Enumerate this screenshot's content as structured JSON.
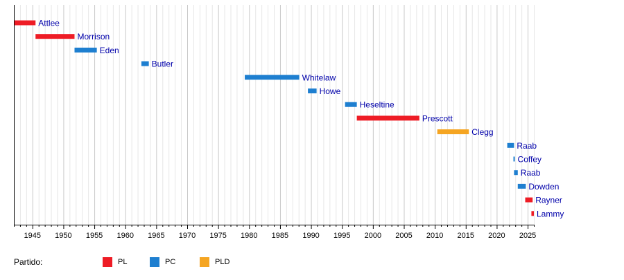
{
  "chart_data": {
    "type": "timeline",
    "x_range": [
      1942,
      2026
    ],
    "ticks": [
      1945,
      1950,
      1955,
      1960,
      1965,
      1970,
      1975,
      1980,
      1985,
      1990,
      1995,
      2000,
      2005,
      2010,
      2015,
      2020,
      2025
    ],
    "grid": true,
    "party_colors": {
      "PL": "#ee1c25",
      "PC": "#1e7fd0",
      "PLD": "#f5a522"
    },
    "bars": [
      {
        "name": "Attlee",
        "party": "PL",
        "start": 1942.1,
        "end": 1945.5
      },
      {
        "name": "Morrison",
        "party": "PL",
        "start": 1945.5,
        "end": 1951.8
      },
      {
        "name": "Eden",
        "party": "PC",
        "start": 1951.8,
        "end": 1955.4
      },
      {
        "name": "Butler",
        "party": "PC",
        "start": 1962.6,
        "end": 1963.8
      },
      {
        "name": "Whitelaw",
        "party": "PC",
        "start": 1979.3,
        "end": 1988.1
      },
      {
        "name": "Howe",
        "party": "PC",
        "start": 1989.5,
        "end": 1990.9
      },
      {
        "name": "Heseltine",
        "party": "PC",
        "start": 1995.5,
        "end": 1997.4
      },
      {
        "name": "Prescott",
        "party": "PL",
        "start": 1997.4,
        "end": 2007.5
      },
      {
        "name": "Clegg",
        "party": "PLD",
        "start": 2010.4,
        "end": 2015.5
      },
      {
        "name": "Raab",
        "party": "PC",
        "start": 2021.7,
        "end": 2022.8
      },
      {
        "name": "Coffey",
        "party": "PC",
        "start": 2022.7,
        "end": 2022.9
      },
      {
        "name": "Raab",
        "party": "PC",
        "start": 2022.8,
        "end": 2023.4
      },
      {
        "name": "Dowden",
        "party": "PC",
        "start": 2023.4,
        "end": 2024.7
      },
      {
        "name": "Rayner",
        "party": "PL",
        "start": 2024.6,
        "end": 2025.8
      },
      {
        "name": "Lammy",
        "party": "PL",
        "start": 2025.6,
        "end": 2026.0
      }
    ]
  },
  "legend": {
    "title": "Partido:",
    "items": [
      {
        "label": "PL",
        "color": "#ee1c25"
      },
      {
        "label": "PC",
        "color": "#1e7fd0"
      },
      {
        "label": "PLD",
        "color": "#f5a522"
      }
    ]
  }
}
